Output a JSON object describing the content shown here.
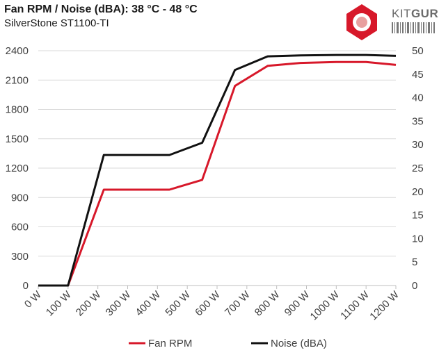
{
  "title": "Fan RPM / Noise (dBA): 38 °C - 48 °C",
  "subtitle": "SilverStone ST1100-TI",
  "logo": {
    "kit": "KIT",
    "guru": "GURU"
  },
  "colors": {
    "fan": "#d7182a",
    "noise": "#111111",
    "grid": "#d9d9d9",
    "axis": "#bfbfbf",
    "text": "#404040"
  },
  "chart_data": {
    "type": "line",
    "categories": [
      "0 W",
      "100 W",
      "200 W",
      "300 W",
      "400 W",
      "500 W",
      "600 W",
      "700 W",
      "800 W",
      "900 W",
      "1000 W",
      "1100 W",
      "1200 W"
    ],
    "x": [
      0,
      100,
      220,
      440,
      550,
      660,
      770,
      880,
      1000,
      1100,
      1200
    ],
    "series": [
      {
        "name": "Fan RPM",
        "axis": "left",
        "color": "#d7182a",
        "values": [
          0,
          0,
          980,
          980,
          1080,
          2040,
          2245,
          2275,
          2285,
          2285,
          2255
        ]
      },
      {
        "name": "Noise (dBA)",
        "axis": "right",
        "color": "#111111",
        "values": [
          0,
          0,
          27.8,
          27.8,
          30.4,
          45.9,
          48.8,
          49.0,
          49.1,
          49.1,
          48.9
        ]
      }
    ],
    "y_left": {
      "min": 0,
      "max": 2400,
      "ticks": [
        0,
        300,
        600,
        900,
        1200,
        1500,
        1800,
        2100,
        2400
      ]
    },
    "y_right": {
      "min": 0,
      "max": 50,
      "ticks": [
        0,
        5,
        10,
        15,
        20,
        25,
        30,
        35,
        40,
        45,
        50
      ]
    },
    "xlim": [
      0,
      1200
    ],
    "grid": true,
    "legend": "bottom"
  }
}
